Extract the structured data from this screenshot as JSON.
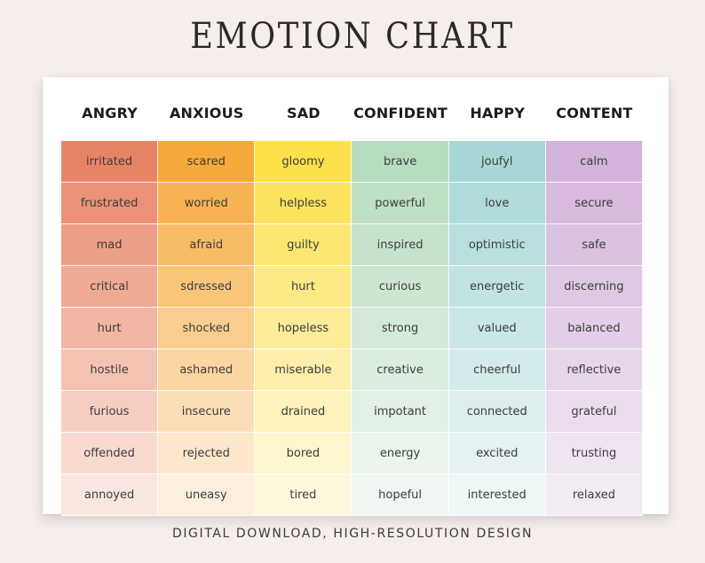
{
  "title": "EMOTION CHART",
  "footer": "DIGITAL DOWNLOAD, HIGH-RESOLUTION DESIGN",
  "columns": [
    {
      "header": "ANGRY",
      "colors": [
        "#e88466",
        "#eb9177",
        "#ed9e86",
        "#f0aa94",
        "#f2b6a3",
        "#f4c2b3",
        "#f6cec2",
        "#f8dad1",
        "#fae6e0"
      ],
      "words": [
        "irritated",
        "frustrated",
        "mad",
        "critical",
        "hurt",
        "hostile",
        "furious",
        "offended",
        "annoyed"
      ]
    },
    {
      "header": "ANXIOUS",
      "colors": [
        "#f6a93b",
        "#f7b351",
        "#f8bc66",
        "#f9c57b",
        "#facd8f",
        "#fbd6a3",
        "#fcdeb6",
        "#fde7ca",
        "#fdefdd"
      ],
      "words": [
        "scared",
        "worried",
        "afraid",
        "sdressed",
        "shocked",
        "ashamed",
        "insecure",
        "rejected",
        "uneasy"
      ]
    },
    {
      "header": "SAD",
      "colors": [
        "#fde14a",
        "#fde45e",
        "#fde772",
        "#fdea86",
        "#fdec98",
        "#fdefab",
        "#fdf2bc",
        "#fdf5cd",
        "#fdf8de"
      ],
      "words": [
        "gloomy",
        "helpless",
        "guilty",
        "hurt",
        "hopeless",
        "miserable",
        "drained",
        "bored",
        "tired"
      ]
    },
    {
      "header": "CONFIDENT",
      "colors": [
        "#b7dbbe",
        "#bfdfc5",
        "#c6e3cc",
        "#cde6d2",
        "#d4e9d8",
        "#dbeddf",
        "#e2f0e5",
        "#e9f4eb",
        "#f0f7f2"
      ],
      "words": [
        "brave",
        "powerful",
        "inspired",
        "curious",
        "strong",
        "creative",
        "impotant",
        "energy",
        "hopeful"
      ]
    },
    {
      "header": "HAPPY",
      "colors": [
        "#a6d7d6",
        "#afdbda",
        "#b8dfde",
        "#c1e3e2",
        "#cae7e6",
        "#d3ebea",
        "#dceeee",
        "#e5f2f2",
        "#eef6f6"
      ],
      "words": [
        "joufyl",
        "love",
        "optimistic",
        "energetic",
        "valued",
        "cheerful",
        "connected",
        "excited",
        "interested"
      ]
    },
    {
      "header": "CONTENT",
      "colors": [
        "#d3b3d9",
        "#d7badc",
        "#dbc1e0",
        "#dfc8e3",
        "#e3cfe7",
        "#e7d6ea",
        "#ebdded",
        "#efe4f1",
        "#f3ebf4"
      ],
      "words": [
        "calm",
        "secure",
        "safe",
        "discerning",
        "balanced",
        "reflective",
        "grateful",
        "trusting",
        "relaxed"
      ]
    }
  ]
}
